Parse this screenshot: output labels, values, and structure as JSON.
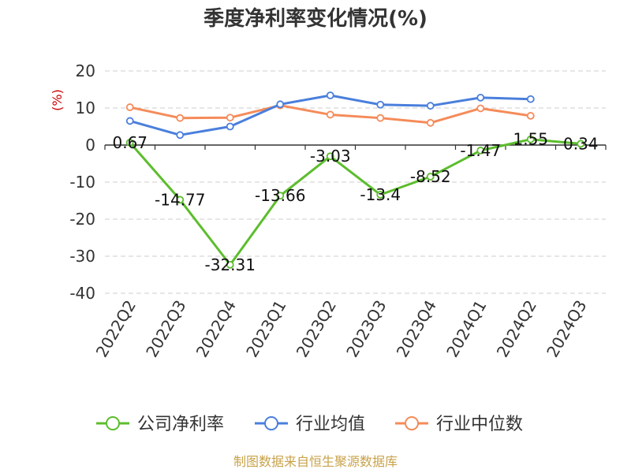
{
  "chart_data": {
    "type": "line",
    "title": "季度净利率变化情况(%)",
    "ylabel": "(%)",
    "xlabel": "",
    "ylim": [
      -40,
      20
    ],
    "yticks": [
      20,
      10,
      0,
      -10,
      -20,
      -30,
      -40
    ],
    "categories": [
      "2022Q2",
      "2022Q3",
      "2022Q4",
      "2023Q1",
      "2023Q2",
      "2023Q3",
      "2023Q4",
      "2024Q1",
      "2024Q2",
      "2024Q3"
    ],
    "grid": true,
    "legend_position": "bottom",
    "series": [
      {
        "name": "公司净利率",
        "color": "#5cbd2d",
        "show_labels": true,
        "values": [
          0.67,
          -14.77,
          -32.31,
          -13.66,
          -3.03,
          -13.4,
          -8.52,
          -1.47,
          1.55,
          0.34
        ],
        "labels": [
          "0.67",
          "-14.77",
          "-32.31",
          "-13.66",
          "-3.03",
          "-13.4",
          "-8.52",
          "-1.47",
          "1.55",
          "0.34"
        ]
      },
      {
        "name": "行业均值",
        "color": "#4a7fdc",
        "show_labels": false,
        "values": [
          6.5,
          2.7,
          5.0,
          11.0,
          13.4,
          10.9,
          10.6,
          12.8,
          12.4,
          null
        ]
      },
      {
        "name": "行业中位数",
        "color": "#f58b5a",
        "show_labels": false,
        "values": [
          10.2,
          7.3,
          7.4,
          10.7,
          8.2,
          7.3,
          6.0,
          9.9,
          7.9,
          null
        ]
      }
    ]
  },
  "source": "制图数据来自恒生聚源数据库"
}
